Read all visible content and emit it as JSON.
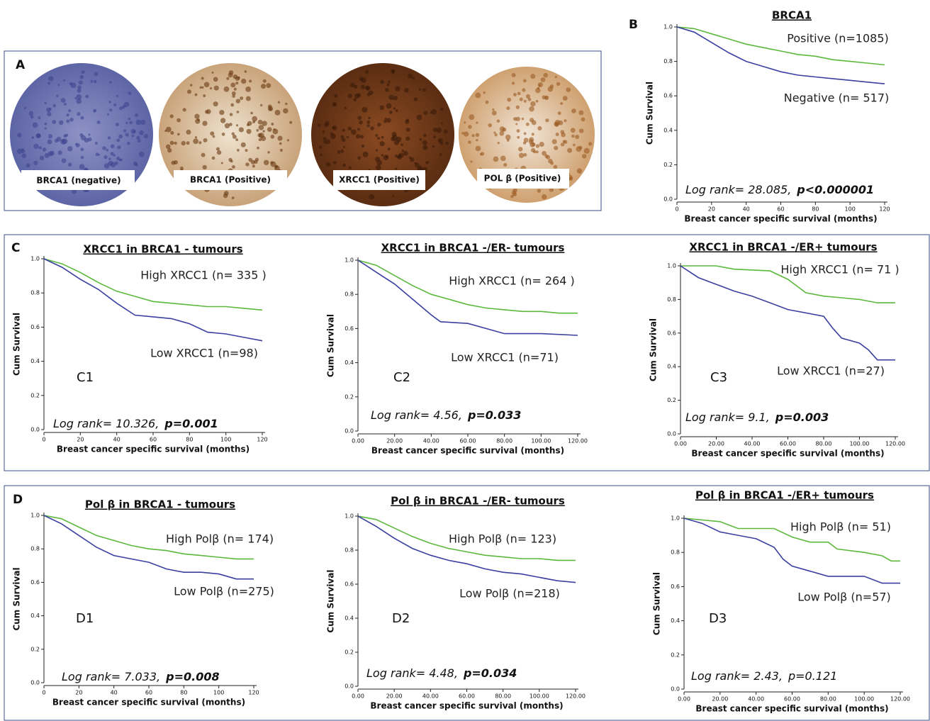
{
  "figure": {
    "labels": [
      "A",
      "B",
      "C",
      "D"
    ],
    "images": [
      "BRCA1 (negative)",
      "BRCA1 (Positive)",
      "XRCC1 (Positive)",
      "POL β (Positive)"
    ]
  },
  "chart_data": [
    {
      "type": "line",
      "title": "BRCA1",
      "xlabel": "Breast cancer specific survival (months)",
      "ylabel": "Cum Survival",
      "xlim": [
        0,
        120
      ],
      "ylim": [
        0,
        1
      ],
      "xticks": [
        0,
        20,
        40,
        60,
        80,
        100,
        120
      ],
      "yticks": [
        {
          "value": 0,
          "label": "0.0"
        },
        0.2,
        0.4,
        0.6,
        0.8,
        {
          "value": 1,
          "label": "1.0"
        }
      ],
      "logrank": "Log rank= 28.085,",
      "p": "p<0.000001",
      "p_bold": true,
      "series": [
        {
          "name": "Positive (n=1085)",
          "color": "#5cb83c",
          "x": [
            0,
            10,
            20,
            30,
            40,
            50,
            60,
            70,
            80,
            90,
            100,
            110,
            120
          ],
          "values": [
            1,
            0.99,
            0.96,
            0.93,
            0.9,
            0.88,
            0.86,
            0.84,
            0.83,
            0.81,
            0.8,
            0.79,
            0.78
          ]
        },
        {
          "name": "Negative (n= 517)",
          "color": "#3a3fa0",
          "x": [
            0,
            10,
            20,
            30,
            40,
            50,
            60,
            70,
            80,
            90,
            100,
            110,
            120
          ],
          "values": [
            1,
            0.97,
            0.91,
            0.85,
            0.8,
            0.77,
            0.74,
            0.72,
            0.71,
            0.7,
            0.69,
            0.68,
            0.67
          ]
        }
      ]
    },
    {
      "type": "line",
      "title": "XRCC1 in BRCA1 - tumours",
      "panel": "C1",
      "xlabel": "Breast cancer specific survival (months)",
      "ylabel": "Cum Survival",
      "xlim": [
        0,
        120
      ],
      "ylim": [
        0,
        1
      ],
      "xticks": [
        0,
        20,
        40,
        60,
        80,
        100,
        120
      ],
      "yticks": [
        {
          "value": 0,
          "label": "0.0"
        },
        0.2,
        0.4,
        0.6,
        0.8,
        {
          "value": 1,
          "label": "1.0"
        }
      ],
      "logrank": "Log rank= 10.326,",
      "p": "p=0.001",
      "p_bold": true,
      "series": [
        {
          "name": "High XRCC1  (n= 335 )",
          "color": "#5cb83c",
          "x": [
            0,
            10,
            20,
            30,
            40,
            50,
            60,
            70,
            80,
            90,
            100,
            110,
            120
          ],
          "values": [
            1,
            0.97,
            0.92,
            0.86,
            0.81,
            0.78,
            0.75,
            0.74,
            0.73,
            0.72,
            0.72,
            0.71,
            0.7
          ]
        },
        {
          "name": "Low XRCC1  (n=98)",
          "color": "#3a3fa0",
          "x": [
            0,
            10,
            20,
            30,
            40,
            50,
            60,
            70,
            80,
            90,
            100,
            110,
            120
          ],
          "values": [
            1,
            0.95,
            0.88,
            0.82,
            0.74,
            0.67,
            0.66,
            0.65,
            0.62,
            0.57,
            0.56,
            0.54,
            0.52
          ]
        }
      ]
    },
    {
      "type": "line",
      "title": "XRCC1 in BRCA1 -/ER- tumours",
      "panel": "C2",
      "xlabel": "Breast cancer specific survival (months)",
      "ylabel": "Cum Survival",
      "xlim": [
        0,
        120
      ],
      "ylim": [
        0,
        1
      ],
      "xticks": [
        {
          "value": 0,
          "label": "0.00"
        },
        {
          "value": 20,
          "label": "20.00"
        },
        {
          "value": 40,
          "label": "40.00"
        },
        {
          "value": 60,
          "label": "60.00"
        },
        {
          "value": 80,
          "label": "80.00"
        },
        {
          "value": 100,
          "label": "100.00"
        },
        {
          "value": 120,
          "label": "120.00"
        }
      ],
      "yticks": [
        {
          "value": 0,
          "label": "0.0"
        },
        0.2,
        0.4,
        0.6,
        0.8,
        {
          "value": 1,
          "label": "1.0"
        }
      ],
      "logrank": "Log rank= 4.56,",
      "p": "p=0.033",
      "p_bold": true,
      "series": [
        {
          "name": "High XRCC1  (n= 264 )",
          "color": "#5cb83c",
          "x": [
            0,
            10,
            20,
            30,
            40,
            50,
            60,
            70,
            80,
            90,
            100,
            110,
            120
          ],
          "values": [
            1,
            0.97,
            0.91,
            0.85,
            0.8,
            0.77,
            0.74,
            0.72,
            0.71,
            0.7,
            0.7,
            0.69,
            0.69
          ]
        },
        {
          "name": "Low XRCC1  (n=71)",
          "color": "#3a3fa0",
          "x": [
            0,
            10,
            20,
            30,
            40,
            45,
            60,
            70,
            80,
            100,
            120
          ],
          "values": [
            1,
            0.93,
            0.86,
            0.77,
            0.68,
            0.64,
            0.63,
            0.6,
            0.57,
            0.57,
            0.56
          ]
        }
      ]
    },
    {
      "type": "line",
      "title": "XRCC1 in BRCA1 -/ER+ tumours",
      "panel": "C3",
      "xlabel": "Breast cancer specific survival (months)",
      "ylabel": "Cum Survival",
      "xlim": [
        0,
        120
      ],
      "ylim": [
        0,
        1
      ],
      "xticks": [
        {
          "value": 0,
          "label": "0.00"
        },
        {
          "value": 20,
          "label": "20.00"
        },
        {
          "value": 40,
          "label": "40.00"
        },
        {
          "value": 60,
          "label": "60.00"
        },
        {
          "value": 80,
          "label": "80.00"
        },
        {
          "value": 100,
          "label": "100.00"
        },
        {
          "value": 120,
          "label": "120.00"
        }
      ],
      "yticks": [
        {
          "value": 0,
          "label": "0.0"
        },
        0.2,
        0.4,
        0.6,
        0.8,
        {
          "value": 1,
          "label": "1.0"
        }
      ],
      "logrank": "Log rank= 9.1,",
      "p": "p=0.003",
      "p_bold": true,
      "series": [
        {
          "name": "High XRCC1  (n= 71 )",
          "color": "#5cb83c",
          "x": [
            0,
            20,
            30,
            50,
            60,
            70,
            80,
            90,
            100,
            110,
            120
          ],
          "values": [
            1,
            1,
            0.98,
            0.97,
            0.92,
            0.84,
            0.82,
            0.81,
            0.8,
            0.78,
            0.78
          ]
        },
        {
          "name": "Low XRCC1  (n=27)",
          "color": "#3a3fa0",
          "x": [
            0,
            10,
            20,
            30,
            40,
            50,
            60,
            80,
            85,
            90,
            100,
            105,
            110,
            120
          ],
          "values": [
            1,
            0.93,
            0.89,
            0.85,
            0.82,
            0.78,
            0.74,
            0.7,
            0.63,
            0.57,
            0.54,
            0.5,
            0.44,
            0.44
          ]
        }
      ]
    },
    {
      "type": "line",
      "title": "Pol β in BRCA1 - tumours",
      "panel": "D1",
      "xlabel": "Breast cancer specific survival (months)",
      "ylabel": "Cum Survival",
      "xlim": [
        0,
        120
      ],
      "ylim": [
        0,
        1
      ],
      "xticks": [
        0,
        20,
        40,
        60,
        80,
        100,
        120
      ],
      "yticks": [
        {
          "value": 0,
          "label": "0.0"
        },
        0.2,
        0.4,
        0.6,
        0.8,
        {
          "value": 1,
          "label": "1.0"
        }
      ],
      "logrank": "Log rank= 7.033,",
      "p": "p=0.008",
      "p_bold": true,
      "series": [
        {
          "name": "High Polβ  (n= 174)",
          "color": "#5cb83c",
          "x": [
            0,
            10,
            20,
            30,
            40,
            50,
            60,
            70,
            80,
            90,
            100,
            110,
            120
          ],
          "values": [
            1,
            0.98,
            0.93,
            0.88,
            0.85,
            0.82,
            0.8,
            0.79,
            0.77,
            0.76,
            0.75,
            0.74,
            0.74
          ]
        },
        {
          "name": "Low Polβ  (n=275)",
          "color": "#3a3fa0",
          "x": [
            0,
            10,
            20,
            30,
            40,
            50,
            60,
            70,
            80,
            90,
            100,
            110,
            120
          ],
          "values": [
            1,
            0.95,
            0.88,
            0.81,
            0.76,
            0.74,
            0.72,
            0.68,
            0.66,
            0.66,
            0.65,
            0.62,
            0.62
          ]
        }
      ]
    },
    {
      "type": "line",
      "title": "Pol β in BRCA1 -/ER- tumours",
      "panel": "D2",
      "xlabel": "Breast cancer specific survival (months)",
      "ylabel": "Cum Survival",
      "xlim": [
        0,
        120
      ],
      "ylim": [
        0,
        1
      ],
      "xticks": [
        {
          "value": 0,
          "label": "0.00"
        },
        {
          "value": 20,
          "label": "20.00"
        },
        {
          "value": 40,
          "label": "40.00"
        },
        {
          "value": 60,
          "label": "60.00"
        },
        {
          "value": 80,
          "label": "80.00"
        },
        {
          "value": 100,
          "label": "100.00"
        },
        {
          "value": 120,
          "label": "120.00"
        }
      ],
      "yticks": [
        {
          "value": 0,
          "label": "0.0"
        },
        0.2,
        0.4,
        0.6,
        0.8,
        {
          "value": 1,
          "label": "1.0"
        }
      ],
      "logrank": "Log rank= 4.48,",
      "p": "p=0.034",
      "p_bold": true,
      "series": [
        {
          "name": "High Polβ  (n= 123)",
          "color": "#5cb83c",
          "x": [
            0,
            10,
            20,
            30,
            40,
            50,
            60,
            70,
            80,
            90,
            100,
            110,
            120
          ],
          "values": [
            1,
            0.98,
            0.93,
            0.88,
            0.84,
            0.81,
            0.79,
            0.77,
            0.76,
            0.75,
            0.75,
            0.74,
            0.74
          ]
        },
        {
          "name": "Low Polβ  (n=218)",
          "color": "#3a3fa0",
          "x": [
            0,
            10,
            20,
            30,
            40,
            50,
            60,
            70,
            80,
            90,
            100,
            110,
            120
          ],
          "values": [
            1,
            0.94,
            0.87,
            0.81,
            0.77,
            0.74,
            0.72,
            0.69,
            0.67,
            0.66,
            0.64,
            0.62,
            0.61
          ]
        }
      ]
    },
    {
      "type": "line",
      "title": "Pol β in BRCA1 -/ER+ tumours",
      "panel": "D3",
      "xlabel": "Breast cancer specific survival (months)",
      "ylabel": "Cum Survival",
      "xlim": [
        0,
        120
      ],
      "ylim": [
        0,
        1
      ],
      "xticks": [
        {
          "value": 0,
          "label": "0.00"
        },
        {
          "value": 20,
          "label": "20.00"
        },
        {
          "value": 40,
          "label": "40.00"
        },
        {
          "value": 60,
          "label": "60.00"
        },
        {
          "value": 80,
          "label": "80.00"
        },
        {
          "value": 100,
          "label": "100.00"
        },
        {
          "value": 120,
          "label": "120.00"
        }
      ],
      "yticks": [
        {
          "value": 0,
          "label": "0.0"
        },
        0.2,
        0.4,
        0.6,
        0.8,
        {
          "value": 1,
          "label": "1.0"
        }
      ],
      "logrank": "Log rank= 2.43,",
      "p": "p=0.121",
      "p_bold": false,
      "series": [
        {
          "name": "High Polβ  (n= 51)",
          "color": "#5cb83c",
          "x": [
            0,
            20,
            30,
            50,
            60,
            70,
            80,
            85,
            100,
            110,
            115,
            120
          ],
          "values": [
            1,
            0.98,
            0.94,
            0.94,
            0.89,
            0.86,
            0.86,
            0.82,
            0.8,
            0.78,
            0.75,
            0.75
          ]
        },
        {
          "name": "Low Polβ  (n=57)",
          "color": "#3a3fa0",
          "x": [
            0,
            10,
            20,
            30,
            40,
            50,
            55,
            60,
            70,
            80,
            100,
            110,
            120
          ],
          "values": [
            1,
            0.97,
            0.92,
            0.9,
            0.88,
            0.83,
            0.76,
            0.72,
            0.69,
            0.66,
            0.66,
            0.62,
            0.62
          ]
        }
      ]
    }
  ]
}
